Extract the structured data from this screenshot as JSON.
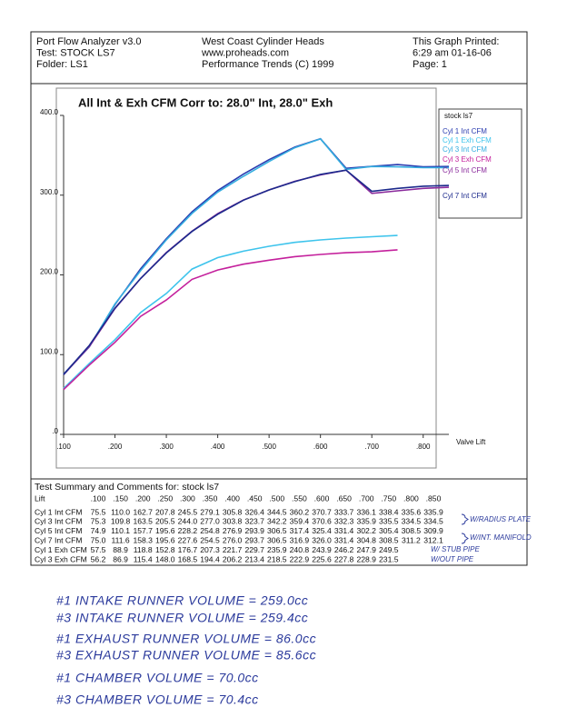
{
  "header": {
    "left": [
      "Port Flow Analyzer v3.0",
      "Test: STOCK LS7",
      "Folder: LS1"
    ],
    "center": [
      "West Coast Cylinder Heads",
      "www.proheads.com",
      "Performance Trends (C) 1999"
    ],
    "right": [
      "This Graph Printed:",
      "6:29 am 01-16-06",
      "Page: 1"
    ]
  },
  "chart": {
    "type": "line",
    "title": "All Int & Exh CFM   Corr to: 28.0\" Int, 28.0\" Exh",
    "xlabel": "Valve Lift",
    "legend_title": "stock ls7",
    "x": [
      0.1,
      0.15,
      0.2,
      0.25,
      0.3,
      0.35,
      0.4,
      0.45,
      0.5,
      0.55,
      0.6,
      0.65,
      0.7,
      0.75,
      0.8,
      0.85
    ],
    "xlim": [
      0.1,
      0.85
    ],
    "ylim": [
      0,
      400
    ],
    "xticks": [
      {
        "value": 0.1,
        "label": ".100"
      },
      {
        "value": 0.2,
        "label": ".200"
      },
      {
        "value": 0.3,
        "label": ".300"
      },
      {
        "value": 0.4,
        "label": ".400"
      },
      {
        "value": 0.5,
        "label": ".500"
      },
      {
        "value": 0.6,
        "label": ".600"
      },
      {
        "value": 0.7,
        "label": ".700"
      },
      {
        "value": 0.8,
        "label": ".800"
      }
    ],
    "yticks": [
      {
        "value": 0,
        "label": ".0"
      },
      {
        "value": 100,
        "label": "100.0"
      },
      {
        "value": 200,
        "label": "200.0"
      },
      {
        "value": 300,
        "label": "300.0"
      },
      {
        "value": 400,
        "label": "400.0"
      }
    ],
    "series": [
      {
        "name": "Cyl 1 Int CFM",
        "color": "#2a3cb0",
        "values": [
          75.5,
          110.0,
          162.7,
          207.8,
          245.5,
          279.1,
          305.8,
          326.4,
          344.5,
          360.2,
          370.7,
          333.7,
          336.1,
          338.4,
          335.6,
          335.9
        ]
      },
      {
        "name": "Cyl 1 Exh CFM",
        "color": "#3ec4ec",
        "values": [
          57.5,
          88.9,
          118.8,
          152.8,
          176.7,
          207.3,
          221.7,
          229.7,
          235.9,
          240.8,
          243.9,
          246.2,
          247.9,
          249.5,
          null,
          null
        ]
      },
      {
        "name": "Cyl 3 Int CFM",
        "color": "#35aee0",
        "values": [
          75.3,
          109.8,
          163.5,
          205.5,
          244.0,
          277.0,
          303.8,
          323.7,
          342.2,
          359.4,
          370.6,
          332.3,
          335.9,
          335.5,
          334.5,
          334.5
        ]
      },
      {
        "name": "Cyl 3 Exh CFM",
        "color": "#c4209c",
        "values": [
          56.2,
          86.9,
          115.4,
          148.0,
          168.5,
          194.4,
          206.2,
          213.4,
          218.5,
          222.9,
          225.6,
          227.8,
          228.9,
          231.5,
          null,
          null
        ]
      },
      {
        "name": "Cyl 5 Int CFM",
        "color": "#8a2a9c",
        "values": [
          74.9,
          110.1,
          157.7,
          195.6,
          228.2,
          254.8,
          276.9,
          293.9,
          306.5,
          317.4,
          325.4,
          331.4,
          302.2,
          305.4,
          308.5,
          309.9
        ]
      },
      {
        "name": "Cyl 7 Int CFM",
        "color": "#1c2a8c",
        "values": [
          75.0,
          111.6,
          158.3,
          195.6,
          227.6,
          254.5,
          276.0,
          293.7,
          306.5,
          316.9,
          326.0,
          331.4,
          304.8,
          308.5,
          311.2,
          312.1
        ]
      }
    ]
  },
  "table": {
    "title": "Test Summary and Comments for:  stock ls7",
    "header": [
      "Lift",
      ".100",
      ".150",
      ".200",
      ".250",
      ".300",
      ".350",
      ".400",
      ".450",
      ".500",
      ".550",
      ".600",
      ".650",
      ".700",
      ".750",
      ".800",
      ".850"
    ],
    "rows": [
      [
        "Cyl 1 Int CFM",
        "75.5",
        "110.0",
        "162.7",
        "207.8",
        "245.5",
        "279.1",
        "305.8",
        "326.4",
        "344.5",
        "360.2",
        "370.7",
        "333.7",
        "336.1",
        "338.4",
        "335.6",
        "335.9"
      ],
      [
        "Cyl 3 Int CFM",
        "75.3",
        "109.8",
        "163.5",
        "205.5",
        "244.0",
        "277.0",
        "303.8",
        "323.7",
        "342.2",
        "359.4",
        "370.6",
        "332.3",
        "335.9",
        "335.5",
        "334.5",
        "334.5"
      ],
      [
        "Cyl 5 Int CFM",
        "74.9",
        "110.1",
        "157.7",
        "195.6",
        "228.2",
        "254.8",
        "276.9",
        "293.9",
        "306.5",
        "317.4",
        "325.4",
        "331.4",
        "302.2",
        "305.4",
        "308.5",
        "309.9"
      ],
      [
        "Cyl 7 Int CFM",
        "75.0",
        "111.6",
        "158.3",
        "195.6",
        "227.6",
        "254.5",
        "276.0",
        "293.7",
        "306.5",
        "316.9",
        "326.0",
        "331.4",
        "304.8",
        "308.5",
        "311.2",
        "312.1"
      ],
      [
        "Cyl 1 Exh CFM",
        "57.5",
        "88.9",
        "118.8",
        "152.8",
        "176.7",
        "207.3",
        "221.7",
        "229.7",
        "235.9",
        "240.8",
        "243.9",
        "246.2",
        "247.9",
        "249.5"
      ],
      [
        "Cyl 3 Exh CFM",
        "56.2",
        "86.9",
        "115.4",
        "148.0",
        "168.5",
        "194.4",
        "206.2",
        "213.4",
        "218.5",
        "222.9",
        "225.6",
        "227.8",
        "228.9",
        "231.5"
      ]
    ],
    "annotations": [
      "W/RADIUS PLATE",
      "W/INT. MANIFOLD",
      "W/ STUB PIPE",
      "W/OUT PIPE"
    ]
  },
  "notes": [
    "#1 INTAKE RUNNER VOLUME = 259.0cc",
    "#3 INTAKE RUNNER VOLUME = 259.4cc",
    "#1 EXHAUST RUNNER VOLUME = 86.0cc",
    "#3 EXHAUST RUNNER VOLUME = 85.6cc",
    "#1 CHAMBER VOLUME = 70.0cc",
    "#3 CHAMBER VOLUME = 70.4cc"
  ]
}
